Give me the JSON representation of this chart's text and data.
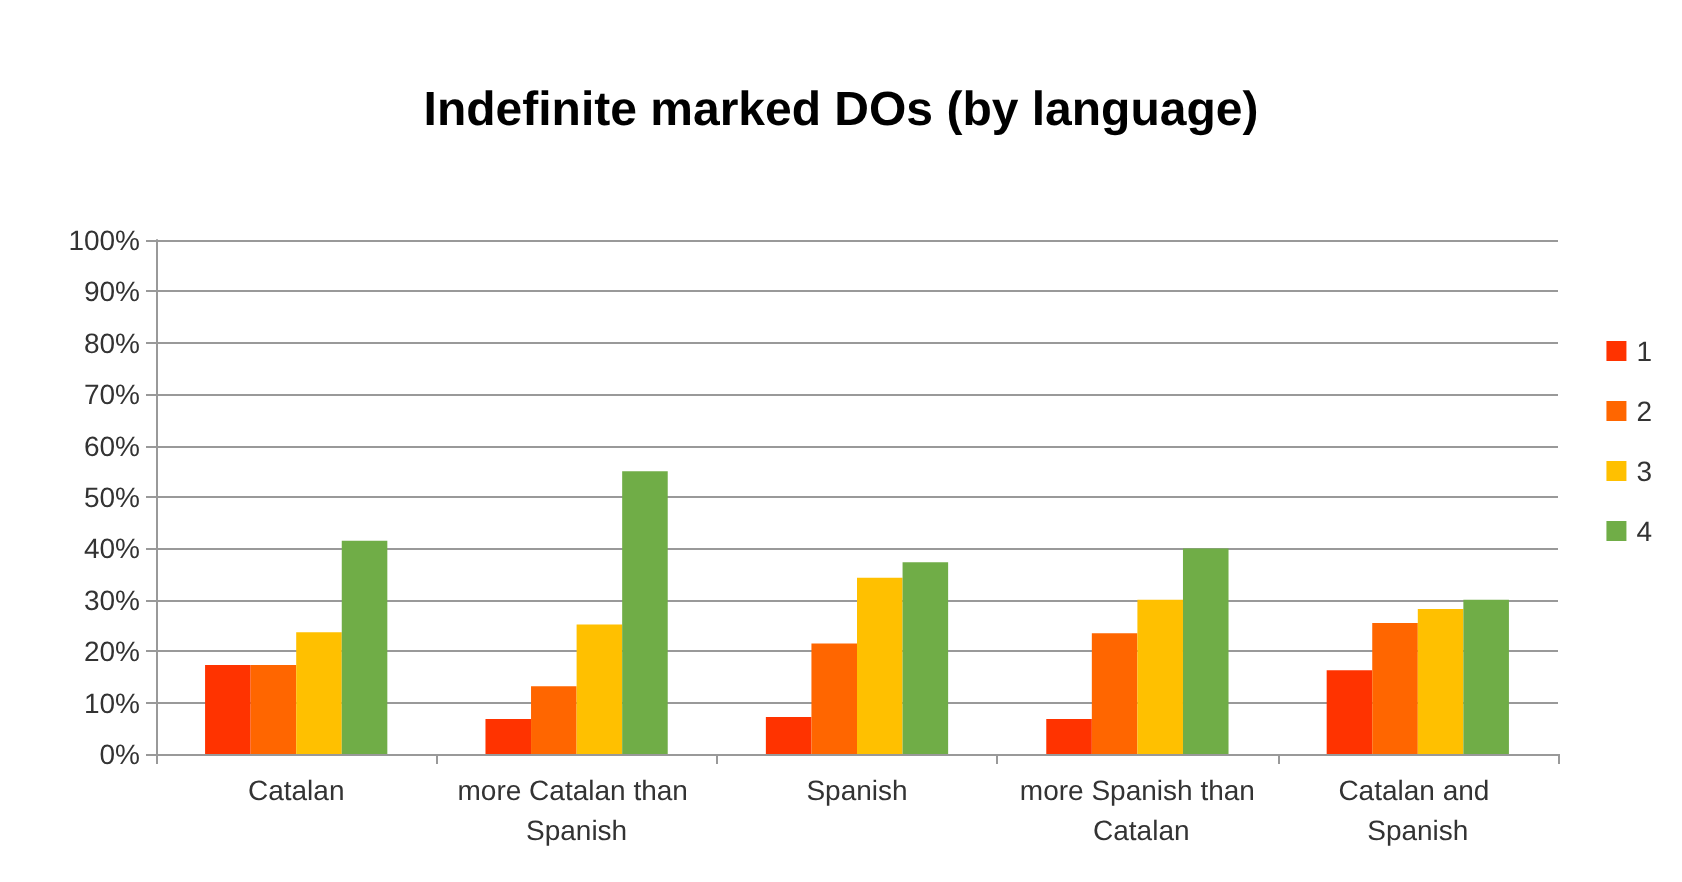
{
  "chart_data": {
    "type": "bar",
    "title": "Indefinite marked DOs (by language)",
    "categories": [
      "Catalan",
      "more Catalan than Spanish",
      "Spanish",
      "more Spanish than Catalan",
      "Catalan and Spanish"
    ],
    "series": [
      {
        "name": "1",
        "color": "#ff3300",
        "values": [
          17.3,
          6.8,
          7.2,
          6.8,
          16.3
        ]
      },
      {
        "name": "2",
        "color": "#ff6600",
        "values": [
          17.3,
          13.2,
          21.5,
          23.5,
          25.5
        ]
      },
      {
        "name": "3",
        "color": "#ffc000",
        "values": [
          23.7,
          25.2,
          34.3,
          30,
          28.2
        ]
      },
      {
        "name": "4",
        "color": "#70ad47",
        "values": [
          41.5,
          55,
          37.3,
          40,
          30
        ]
      }
    ],
    "ylim": [
      0,
      100
    ],
    "yticks": [
      {
        "value": 0,
        "label": "0%"
      },
      {
        "value": 10,
        "label": "10%"
      },
      {
        "value": 20,
        "label": "20%"
      },
      {
        "value": 30,
        "label": "30%"
      },
      {
        "value": 40,
        "label": "40%"
      },
      {
        "value": 50,
        "label": "50%"
      },
      {
        "value": 60,
        "label": "60%"
      },
      {
        "value": 70,
        "label": "70%"
      },
      {
        "value": 80,
        "label": "80%"
      },
      {
        "value": 90,
        "label": "90%"
      },
      {
        "value": 100,
        "label": "100%"
      }
    ],
    "grid": "y",
    "legend": "right"
  }
}
